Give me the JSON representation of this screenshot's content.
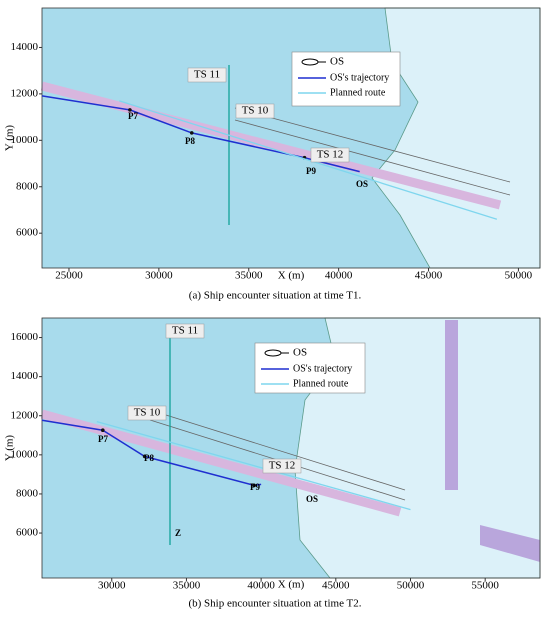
{
  "chart_data": [
    {
      "type": "line",
      "xlabel": "X (m)",
      "ylabel": "Y (m)",
      "caption": "(a) Ship encounter situation at time T1.",
      "xlim": [
        23500,
        51200
      ],
      "ylim": [
        4500,
        15700
      ],
      "xticks": [
        25000,
        30000,
        35000,
        40000,
        45000,
        50000
      ],
      "yticks": [
        6000,
        8000,
        10000,
        12000,
        14000
      ],
      "legend_ship": "OS",
      "series": [
        {
          "name": "OS's trajectory",
          "color": "#1f2fd0",
          "x": [
            23500,
            28390,
            31830,
            38100,
            41170
          ],
          "y": [
            11915,
            11310,
            10320,
            9250,
            8650
          ]
        },
        {
          "name": "Planned route",
          "color": "#7fd6ee",
          "x": [
            27800,
            48800
          ],
          "y": [
            11700,
            6600
          ]
        }
      ],
      "annotations": [
        "P7",
        "P8",
        "P9",
        "TS 10",
        "TS 11",
        "TS 12",
        "OS"
      ]
    },
    {
      "type": "line",
      "xlabel": "X (m)",
      "ylabel": "Y (m)",
      "caption": "(b) Ship encounter situation at time T2.",
      "xlim": [
        25330,
        58670
      ],
      "ylim": [
        3700,
        17000
      ],
      "xticks": [
        30000,
        35000,
        40000,
        45000,
        50000,
        55000
      ],
      "yticks": [
        6000,
        8000,
        10000,
        12000,
        14000,
        16000
      ],
      "legend_ship": "OS",
      "series": [
        {
          "name": "OS's trajectory",
          "color": "#1f2fd0",
          "x": [
            25330,
            29400,
            32200,
            39530,
            40000
          ],
          "y": [
            11770,
            11260,
            9920,
            8440,
            8490
          ]
        },
        {
          "name": "Planned route",
          "color": "#7fd6ee",
          "x": [
            29000,
            50000
          ],
          "y": [
            11700,
            7200
          ]
        }
      ],
      "annotations": [
        "P7",
        "P8",
        "P9",
        "TS 10",
        "TS 11",
        "TS 12",
        "OS",
        "Z"
      ]
    }
  ]
}
